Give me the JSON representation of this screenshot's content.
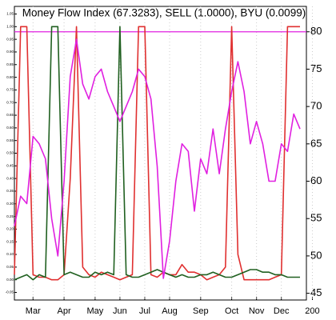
{
  "chart_data": {
    "type": "line",
    "title": "Money Flow Index (67.3283), SELL (1.0000), BYU (0.0099)",
    "categories": [
      null,
      null,
      null,
      "Mar",
      null,
      null,
      null,
      null,
      "Apr",
      null,
      null,
      null,
      null,
      "May",
      null,
      null,
      null,
      "Jun",
      null,
      null,
      null,
      "Jul",
      null,
      null,
      null,
      "Aug",
      null,
      null,
      null,
      null,
      "Sep",
      null,
      null,
      null,
      null,
      "Oct",
      null,
      null,
      null,
      "Nov",
      null,
      null,
      null,
      "Dec",
      null,
      null,
      null,
      null,
      "200"
    ],
    "series": [
      {
        "name": "Money Flow Index",
        "color": "#e020e0",
        "values": [
          54,
          58,
          57,
          66,
          65,
          63,
          55,
          50,
          60,
          74,
          79,
          73,
          71,
          74,
          75,
          72,
          70,
          68,
          70,
          72,
          75,
          74,
          71,
          62,
          47,
          52,
          60,
          65,
          64,
          56,
          63,
          61,
          67,
          61,
          67,
          72,
          76,
          72,
          65,
          68,
          65,
          60,
          60,
          65,
          64,
          69,
          67,
          null,
          null
        ]
      },
      {
        "name": "SELL",
        "color": "#e03030",
        "axis": "y2",
        "values": [
          0.02,
          1,
          1,
          0.02,
          0.01,
          0.01,
          0,
          0,
          0.02,
          0.4,
          1,
          0.05,
          0.02,
          0.01,
          0.03,
          0.02,
          0.01,
          0,
          0.01,
          0.02,
          1,
          1,
          0.02,
          0.01,
          0.03,
          0.02,
          0.02,
          0.06,
          0.03,
          0.03,
          0.02,
          0,
          0.01,
          0.02,
          0.05,
          1,
          0.1,
          0,
          0,
          0,
          0,
          0,
          0.01,
          0.02,
          1,
          1,
          1,
          null,
          null
        ]
      },
      {
        "name": "BYU",
        "color": "#206020",
        "axis": "y2",
        "values": [
          0,
          0.01,
          0.02,
          0,
          0.02,
          0.01,
          1,
          1,
          0.02,
          0.03,
          0.02,
          0.01,
          0.01,
          0.03,
          0.02,
          0.03,
          0.02,
          1,
          0.02,
          0.01,
          0.01,
          0.02,
          0.03,
          0.04,
          0.03,
          0.02,
          0.01,
          0.02,
          0.01,
          0.01,
          0.02,
          0.02,
          0.03,
          0.02,
          0.01,
          0.01,
          0.02,
          0.03,
          0.04,
          0.04,
          0.03,
          0.03,
          0.02,
          0.02,
          0.01,
          0.01,
          0.01,
          null,
          null
        ]
      }
    ],
    "hline": 80,
    "hline_color": "#e020e0",
    "ylim": [
      44.1,
      83.4
    ],
    "yticks": [
      45,
      50,
      55,
      60,
      65,
      70,
      75,
      80
    ],
    "y2lim": [
      -0.08,
      1.08
    ],
    "y2ticks": [
      {
        "value": -0.05,
        "label": "-0.05"
      },
      {
        "value": 0,
        "label": "0.00"
      },
      {
        "value": 0.05,
        "label": "0.05"
      },
      {
        "value": 0.1,
        "label": "0.10"
      },
      {
        "value": 0.15,
        "label": "0.15"
      },
      {
        "value": 0.2,
        "label": "0.20"
      },
      {
        "value": 0.25,
        "label": "0.25"
      },
      {
        "value": 0.3,
        "label": "0.30"
      },
      {
        "value": 0.35,
        "label": "0.35"
      },
      {
        "value": 0.4,
        "label": "0.40"
      },
      {
        "value": 0.45,
        "label": "0.45"
      },
      {
        "value": 0.5,
        "label": "0.50"
      },
      {
        "value": 0.55,
        "label": "0.55"
      },
      {
        "value": 0.6,
        "label": "0.60"
      },
      {
        "value": 0.65,
        "label": "0.65"
      },
      {
        "value": 0.7,
        "label": "0.70"
      },
      {
        "value": 0.75,
        "label": "0.75"
      },
      {
        "value": 0.8,
        "label": "0.80"
      },
      {
        "value": 0.85,
        "label": "0.85"
      },
      {
        "value": 0.9,
        "label": "0.90"
      },
      {
        "value": 0.95,
        "label": "0.95"
      },
      {
        "value": 1,
        "label": "1.00"
      },
      {
        "value": 1.05,
        "label": "1.05"
      }
    ]
  }
}
